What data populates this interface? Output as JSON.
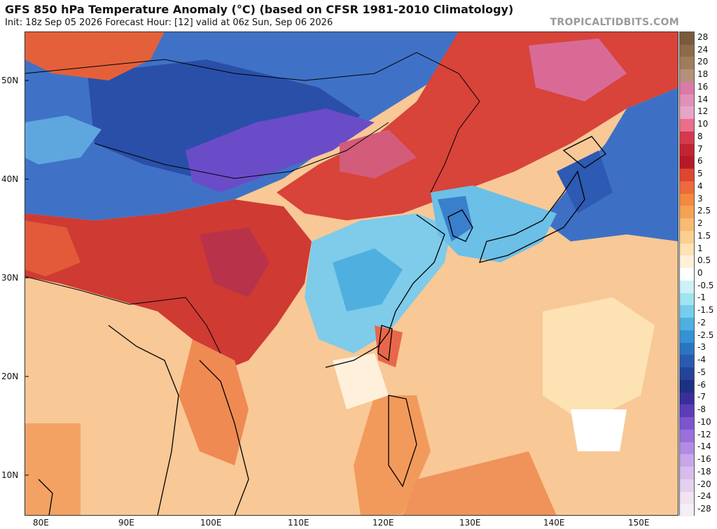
{
  "header": {
    "title": "GFS 850 hPa Temperature Anomaly (°C) (based on CFSR 1981-2010 Climatology)",
    "subtitle": "Init: 18z Sep 05 2026   Forecast Hour: [12]   valid at 06z Sun, Sep 06 2026",
    "brand": "TROPICALTIDBITS.COM"
  },
  "map": {
    "lat_labels": [
      "50N",
      "40N",
      "30N",
      "20N",
      "10N"
    ],
    "lon_labels": [
      "80E",
      "90E",
      "100E",
      "110E",
      "120E",
      "130E",
      "140E",
      "150E"
    ]
  },
  "colorbar": {
    "labels": [
      "28",
      "24",
      "20",
      "18",
      "16",
      "14",
      "12",
      "10",
      "8",
      "7",
      "6",
      "5",
      "4",
      "3",
      "2.5",
      "2",
      "1.5",
      "1",
      "0.5",
      "0",
      "-0.5",
      "-1",
      "-1.5",
      "-2",
      "-2.5",
      "-3",
      "-4",
      "-5",
      "-6",
      "-7",
      "-8",
      "-10",
      "-12",
      "-14",
      "-16",
      "-18",
      "-20",
      "-24",
      "-28"
    ],
    "colors": [
      "#7a5a3c",
      "#8c6a4a",
      "#a07c5c",
      "#b3917a",
      "#d97aa8",
      "#e190b8",
      "#e6a5c6",
      "#ea6f8a",
      "#d43a4e",
      "#c42333",
      "#b51a2a",
      "#e0452f",
      "#ec6a3d",
      "#f3893f",
      "#f5a255",
      "#f8bb72",
      "#fbcf8f",
      "#fde2b4",
      "#fff1d9",
      "#ffffff",
      "#ccf2f7",
      "#9fe4f0",
      "#76cdea",
      "#4fb0e0",
      "#3592d4",
      "#2a74c4",
      "#2a5ab0",
      "#23449a",
      "#1c3182",
      "#3a2f9a",
      "#5b3db8",
      "#7c55d0",
      "#9a70dc",
      "#b28ce4",
      "#c8a6ea",
      "#d8bcec",
      "#e6d0ef",
      "#f2e2f3",
      "#f6eef6"
    ]
  }
}
